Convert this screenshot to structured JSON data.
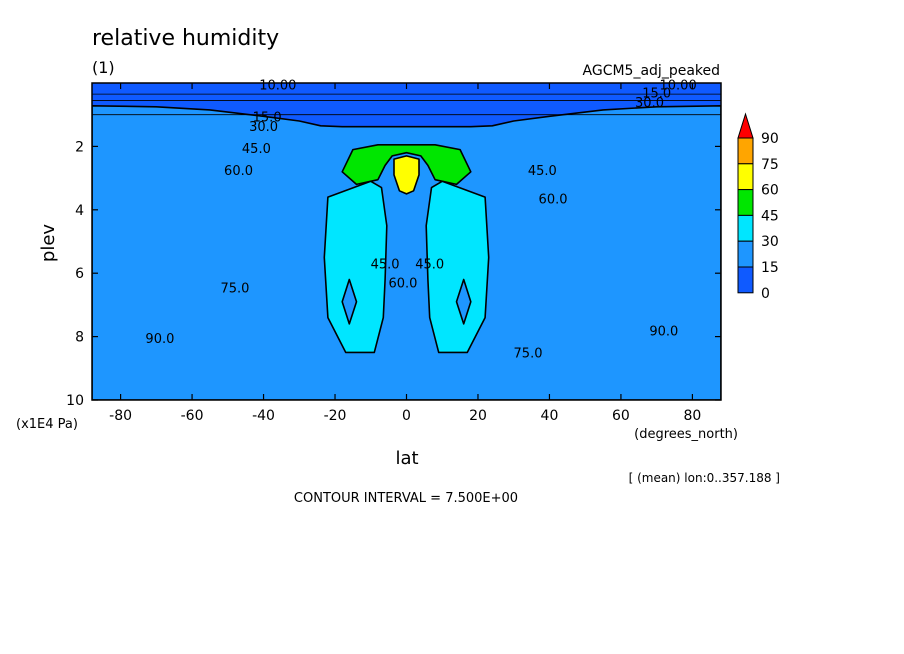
{
  "chart_data": {
    "type": "heatmap",
    "title": "relative humidity",
    "subtitle": "(1)",
    "dataset_label": "AGCM5_adj_peaked",
    "xlabel": "lat",
    "xunits": "(degrees_north)",
    "ylabel": "plev",
    "yunits": "(x1E4 Pa)",
    "xlim": [
      -88,
      88
    ],
    "ylim": [
      10,
      0
    ],
    "y_reversed": true,
    "x_ticks": [
      "-80",
      "-60",
      "-40",
      "-20",
      "0",
      "20",
      "40",
      "60",
      "80"
    ],
    "x_tick_values": [
      -80,
      -60,
      -40,
      -20,
      0,
      20,
      40,
      60,
      80
    ],
    "y_ticks": [
      "2",
      "4",
      "6",
      "8",
      "10"
    ],
    "y_tick_values": [
      2,
      4,
      6,
      8,
      10
    ],
    "note": "[ (mean) lon:0..357.188 ]",
    "contour_interval": "CONTOUR INTERVAL = 7.500E+00",
    "colorbar": {
      "labels": [
        "90",
        "75",
        "60",
        "45",
        "30",
        "15",
        "0"
      ],
      "levels": [
        0,
        15,
        30,
        45,
        60,
        75,
        90
      ],
      "colors": [
        "#0f5aff",
        "#1e96ff",
        "#00e6ff",
        "#00e600",
        "#ffff00",
        "#ffa500",
        "#ff0000"
      ]
    },
    "regions": [
      {
        "level": 90,
        "polygon": [
          [
            -88,
            7.7
          ],
          [
            -79,
            7.8
          ],
          [
            -70,
            8.1
          ],
          [
            -60,
            8.4
          ],
          [
            -53,
            8.6
          ],
          [
            -53,
            9.3
          ],
          [
            -66,
            9.25
          ],
          [
            -78,
            9.25
          ],
          [
            -88,
            9.6
          ]
        ]
      },
      {
        "level": 90,
        "polygon": [
          [
            -50,
            9.2
          ],
          [
            -45,
            9.1
          ],
          [
            -38,
            9.2
          ],
          [
            -36,
            10
          ],
          [
            -49,
            10
          ]
        ]
      },
      {
        "level": 90,
        "polygon": [
          [
            88,
            7.7
          ],
          [
            79,
            7.8
          ],
          [
            70,
            8.1
          ],
          [
            62,
            8.3
          ],
          [
            55,
            8.6
          ],
          [
            44,
            9.1
          ],
          [
            38,
            9.2
          ],
          [
            35,
            10
          ],
          [
            88,
            10
          ]
        ]
      },
      {
        "level": 75,
        "polygon": [
          [
            -88,
            4.3
          ],
          [
            -72,
            4.2
          ],
          [
            -62,
            4.3
          ],
          [
            -50,
            4.7
          ],
          [
            -42,
            5.3
          ],
          [
            -37,
            5.9
          ],
          [
            -32,
            7.4
          ],
          [
            -27,
            8.7
          ],
          [
            -22,
            9.3
          ],
          [
            -13,
            9.7
          ],
          [
            -5,
            9.7
          ],
          [
            -2.5,
            8
          ],
          [
            -1.5,
            7.1
          ],
          [
            1.5,
            7.1
          ],
          [
            2.5,
            8
          ],
          [
            5,
            9.7
          ],
          [
            13,
            9.7
          ],
          [
            22,
            9.3
          ],
          [
            27,
            8.7
          ],
          [
            32,
            7.4
          ],
          [
            37,
            5.9
          ],
          [
            43,
            5.2
          ],
          [
            52,
            4.6
          ],
          [
            62,
            4.3
          ],
          [
            72,
            4.2
          ],
          [
            88,
            4.3
          ],
          [
            88,
            10
          ],
          [
            -88,
            10
          ]
        ]
      },
      {
        "level": 60,
        "polygon": [
          [
            -88,
            2.5
          ],
          [
            -72,
            2.4
          ],
          [
            -58,
            2.5
          ],
          [
            -45,
            2.8
          ],
          [
            -37,
            3.2
          ],
          [
            -32,
            3.6
          ],
          [
            -29,
            5.2
          ],
          [
            -27,
            7.2
          ],
          [
            -25,
            8.3
          ],
          [
            -20,
            8.9
          ],
          [
            -15,
            9.2
          ],
          [
            -6,
            9.3
          ],
          [
            -3,
            9.2
          ],
          [
            3,
            9.2
          ],
          [
            6,
            9.3
          ],
          [
            15,
            9.2
          ],
          [
            20,
            8.9
          ],
          [
            25,
            8.3
          ],
          [
            27,
            7.2
          ],
          [
            29,
            5.2
          ],
          [
            32,
            3.6
          ],
          [
            37,
            3.2
          ],
          [
            45,
            2.8
          ],
          [
            58,
            2.5
          ],
          [
            72,
            2.4
          ],
          [
            88,
            2.5
          ],
          [
            88,
            10
          ],
          [
            -88,
            10
          ]
        ]
      },
      {
        "level": 45,
        "polygon": [
          [
            -88,
            1.2
          ],
          [
            -72,
            1.3
          ],
          [
            -60,
            1.45
          ],
          [
            -48,
            1.6
          ],
          [
            -36,
            1.9
          ],
          [
            -28,
            2.1
          ],
          [
            -23,
            2.2
          ],
          [
            -22,
            3.6
          ],
          [
            -23,
            5.4
          ],
          [
            -22,
            7.3
          ],
          [
            -18,
            8.4
          ],
          [
            -13,
            8.8
          ],
          [
            -4,
            8.9
          ],
          [
            4,
            8.9
          ],
          [
            13,
            8.8
          ],
          [
            18,
            8.4
          ],
          [
            22,
            7.3
          ],
          [
            23,
            5.4
          ],
          [
            22,
            3.6
          ],
          [
            23,
            2.2
          ],
          [
            28,
            2.1
          ],
          [
            36,
            1.9
          ],
          [
            48,
            1.6
          ],
          [
            60,
            1.45
          ],
          [
            72,
            1.3
          ],
          [
            88,
            1.2
          ],
          [
            88,
            10
          ],
          [
            -88,
            10
          ]
        ]
      },
      {
        "level": 30,
        "polygon": [
          [
            -88,
            0.95
          ],
          [
            -70,
            0.95
          ],
          [
            -55,
            1.1
          ],
          [
            -42,
            1.3
          ],
          [
            -32,
            1.5
          ],
          [
            -26,
            1.65
          ],
          [
            -20,
            1.7
          ],
          [
            -10,
            1.7
          ],
          [
            0,
            1.6
          ],
          [
            10,
            1.7
          ],
          [
            20,
            1.7
          ],
          [
            26,
            1.65
          ],
          [
            32,
            1.5
          ],
          [
            42,
            1.3
          ],
          [
            55,
            1.1
          ],
          [
            70,
            0.95
          ],
          [
            88,
            0.95
          ],
          [
            88,
            10
          ],
          [
            -88,
            10
          ]
        ]
      },
      {
        "level": 15,
        "polygon": [
          [
            -88,
            0.72
          ],
          [
            -70,
            0.75
          ],
          [
            -55,
            0.85
          ],
          [
            -40,
            1.05
          ],
          [
            -30,
            1.2
          ],
          [
            -24,
            1.35
          ],
          [
            -18,
            1.38
          ],
          [
            0,
            1.38
          ],
          [
            18,
            1.38
          ],
          [
            24,
            1.35
          ],
          [
            30,
            1.2
          ],
          [
            40,
            1.05
          ],
          [
            55,
            0.85
          ],
          [
            70,
            0.75
          ],
          [
            88,
            0.72
          ],
          [
            88,
            10
          ],
          [
            -88,
            10
          ]
        ]
      },
      {
        "level": 45,
        "polygon": [
          [
            -15,
            2.1
          ],
          [
            -8,
            1.95
          ],
          [
            8,
            1.95
          ],
          [
            15,
            2.1
          ],
          [
            18,
            2.8
          ],
          [
            14,
            3.2
          ],
          [
            8,
            3.05
          ],
          [
            6,
            2.6
          ],
          [
            4,
            2.3
          ],
          [
            0,
            2.2
          ],
          [
            -4,
            2.3
          ],
          [
            -6,
            2.6
          ],
          [
            -8,
            3.05
          ],
          [
            -14,
            3.2
          ],
          [
            -18,
            2.8
          ]
        ]
      },
      {
        "level": 30,
        "polygon": [
          [
            -22,
            3.6
          ],
          [
            -10,
            3.1
          ],
          [
            -7,
            3.3
          ],
          [
            -5.5,
            4.5
          ],
          [
            -6,
            6.2
          ],
          [
            -6.5,
            7.4
          ],
          [
            -9,
            8.5
          ],
          [
            -17,
            8.5
          ],
          [
            -22,
            7.4
          ],
          [
            -23,
            5.5
          ]
        ]
      },
      {
        "level": 30,
        "polygon": [
          [
            22,
            3.6
          ],
          [
            10,
            3.1
          ],
          [
            7,
            3.3
          ],
          [
            5.5,
            4.5
          ],
          [
            6,
            6.2
          ],
          [
            6.5,
            7.4
          ],
          [
            9,
            8.5
          ],
          [
            17,
            8.5
          ],
          [
            22,
            7.4
          ],
          [
            23,
            5.5
          ]
        ]
      },
      {
        "level": 60,
        "polygon": [
          [
            -3.5,
            2.4
          ],
          [
            0,
            2.3
          ],
          [
            3.5,
            2.4
          ],
          [
            3.5,
            2.9
          ],
          [
            2,
            3.4
          ],
          [
            0,
            3.5
          ],
          [
            -2,
            3.4
          ],
          [
            -3.5,
            2.9
          ]
        ]
      },
      {
        "level": 15,
        "polygon": [
          [
            -16,
            6.2
          ],
          [
            -14,
            6.9
          ],
          [
            -16,
            7.6
          ],
          [
            -18,
            6.9
          ]
        ]
      },
      {
        "level": 15,
        "polygon": [
          [
            16,
            6.2
          ],
          [
            18,
            6.9
          ],
          [
            16,
            7.6
          ],
          [
            14,
            6.9
          ]
        ]
      }
    ],
    "contour_labels": [
      {
        "text": "10.00",
        "x": -36,
        "y": 0.05
      },
      {
        "text": "10.00",
        "x": 76,
        "y": 0.05
      },
      {
        "text": "15.0",
        "x": -39,
        "y": 1.05
      },
      {
        "text": "15.0",
        "x": 70,
        "y": 0.3
      },
      {
        "text": "30.0",
        "x": -40,
        "y": 1.35
      },
      {
        "text": "30.0",
        "x": 68,
        "y": 0.6
      },
      {
        "text": "45.0",
        "x": -42,
        "y": 2.05
      },
      {
        "text": "45.0",
        "x": 38,
        "y": 2.75
      },
      {
        "text": "60.0",
        "x": -47,
        "y": 2.75
      },
      {
        "text": "60.0",
        "x": 41,
        "y": 3.65
      },
      {
        "text": "45.0",
        "x": -6,
        "y": 5.7
      },
      {
        "text": "45.0",
        "x": 6.5,
        "y": 5.7
      },
      {
        "text": "60.0",
        "x": -1,
        "y": 6.3
      },
      {
        "text": "75.0",
        "x": -48,
        "y": 6.45
      },
      {
        "text": "75.0",
        "x": 34,
        "y": 8.5
      },
      {
        "text": "90.0",
        "x": -69,
        "y": 8.05
      },
      {
        "text": "90.0",
        "x": 72,
        "y": 7.8
      }
    ]
  }
}
